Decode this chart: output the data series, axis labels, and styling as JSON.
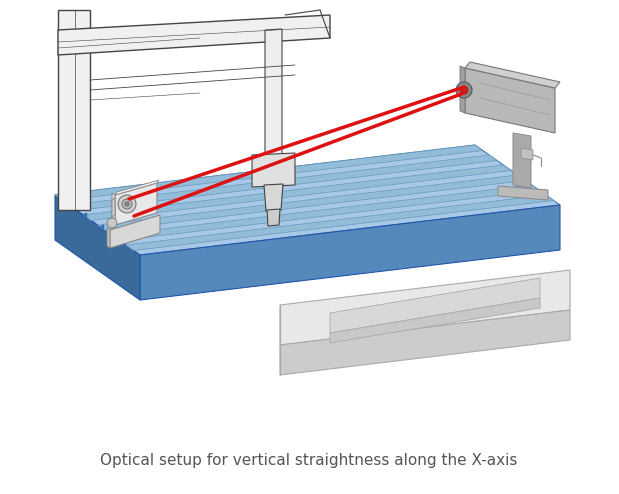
{
  "caption": "Optical setup for vertical straightness along the X-axis",
  "bg_color": "#ffffff",
  "caption_fontsize": 11,
  "caption_color": "#555555",
  "table_top_color": "#a8c8e8",
  "table_front_color": "#5588bb",
  "table_left_color": "#3a6a9a",
  "table_stripe_dark": "#88b4d4",
  "table_stripe_light": "#b8d8f0",
  "laser_color": "#dd1111",
  "machine_line_color": "#444444",
  "device_color": "#e0e0e0",
  "laser_body_color": "#b0b0b0",
  "base_color": "#e8e8e8",
  "base_side_color": "#cccccc"
}
